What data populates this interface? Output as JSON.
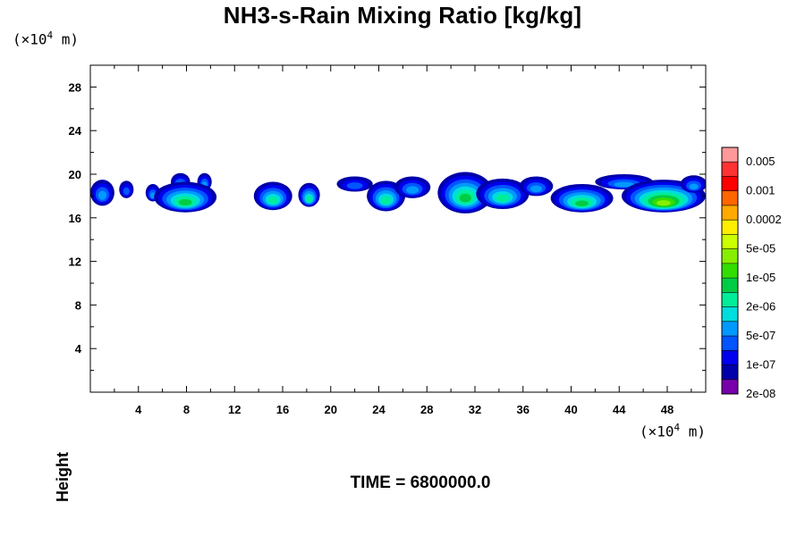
{
  "chart_data": {
    "type": "heatmap",
    "title": "NH3-s-Rain Mixing Ratio [kg/kg]",
    "ylabel": "Height",
    "xlabel": "",
    "x_unit": "(×10⁴ m)",
    "y_unit": "(×10⁴ m)",
    "x_unit_base": "(×10",
    "x_unit_exp": "4",
    "x_unit_tail": " m)",
    "y_unit_base": "(×10",
    "y_unit_exp": "4",
    "y_unit_tail": " m)",
    "xlim": [
      0,
      51.2
    ],
    "ylim": [
      0,
      30
    ],
    "x_ticks": [
      "4",
      "8",
      "12",
      "16",
      "20",
      "24",
      "28",
      "32",
      "36",
      "40",
      "44",
      "48"
    ],
    "y_ticks": [
      "4",
      "8",
      "12",
      "16",
      "20",
      "24",
      "28"
    ],
    "x_tick_values": [
      4,
      8,
      12,
      16,
      20,
      24,
      28,
      32,
      36,
      40,
      44,
      48
    ],
    "y_tick_values": [
      4,
      8,
      12,
      16,
      20,
      24,
      28
    ],
    "colorbar": {
      "labels": [
        "0.005",
        "0.001",
        "0.0002",
        "5e-05",
        "1e-05",
        "2e-06",
        "5e-07",
        "1e-07",
        "2e-08"
      ],
      "colors": [
        "#ff9999",
        "#ff3333",
        "#ff0000",
        "#ff6600",
        "#ffaa00",
        "#ffee00",
        "#ccff00",
        "#88ee00",
        "#33dd00",
        "#00cc44",
        "#00ee99",
        "#00dddd",
        "#0099ff",
        "#0055ff",
        "#0000ee",
        "#0000aa",
        "#7700aa"
      ]
    },
    "blobs": [
      {
        "x": 1.0,
        "y": 18.3,
        "rx": 1.0,
        "ry": 1.2,
        "level": 2
      },
      {
        "x": 3.0,
        "y": 18.6,
        "rx": 0.6,
        "ry": 0.8,
        "level": 1
      },
      {
        "x": 5.2,
        "y": 18.3,
        "rx": 0.6,
        "ry": 0.8,
        "level": 2
      },
      {
        "x": 7.5,
        "y": 19.3,
        "rx": 0.8,
        "ry": 0.8,
        "level": 2
      },
      {
        "x": 9.5,
        "y": 19.3,
        "rx": 0.6,
        "ry": 0.8,
        "level": 2
      },
      {
        "x": 7.9,
        "y": 17.9,
        "rx": 2.6,
        "ry": 1.4,
        "level": 5
      },
      {
        "x": 15.2,
        "y": 18.0,
        "rx": 1.6,
        "ry": 1.3,
        "level": 4
      },
      {
        "x": 18.2,
        "y": 18.1,
        "rx": 0.9,
        "ry": 1.1,
        "level": 4
      },
      {
        "x": 22.0,
        "y": 19.1,
        "rx": 1.5,
        "ry": 0.7,
        "level": 1
      },
      {
        "x": 24.6,
        "y": 18.0,
        "rx": 1.6,
        "ry": 1.4,
        "level": 4
      },
      {
        "x": 26.8,
        "y": 18.8,
        "rx": 1.5,
        "ry": 1.0,
        "level": 2
      },
      {
        "x": 31.2,
        "y": 18.3,
        "rx": 2.3,
        "ry": 1.9,
        "level": 5
      },
      {
        "x": 34.3,
        "y": 18.2,
        "rx": 2.2,
        "ry": 1.4,
        "level": 4
      },
      {
        "x": 37.1,
        "y": 18.9,
        "rx": 1.4,
        "ry": 0.9,
        "level": 2
      },
      {
        "x": 40.9,
        "y": 17.8,
        "rx": 2.6,
        "ry": 1.3,
        "level": 5
      },
      {
        "x": 44.4,
        "y": 19.3,
        "rx": 2.4,
        "ry": 0.7,
        "level": 2
      },
      {
        "x": 47.7,
        "y": 18.0,
        "rx": 3.5,
        "ry": 1.5,
        "level": 7
      },
      {
        "x": 50.2,
        "y": 19.1,
        "rx": 1.1,
        "ry": 0.8,
        "level": 2
      }
    ]
  },
  "footer": {
    "time_label": "TIME = 6800000.0"
  }
}
